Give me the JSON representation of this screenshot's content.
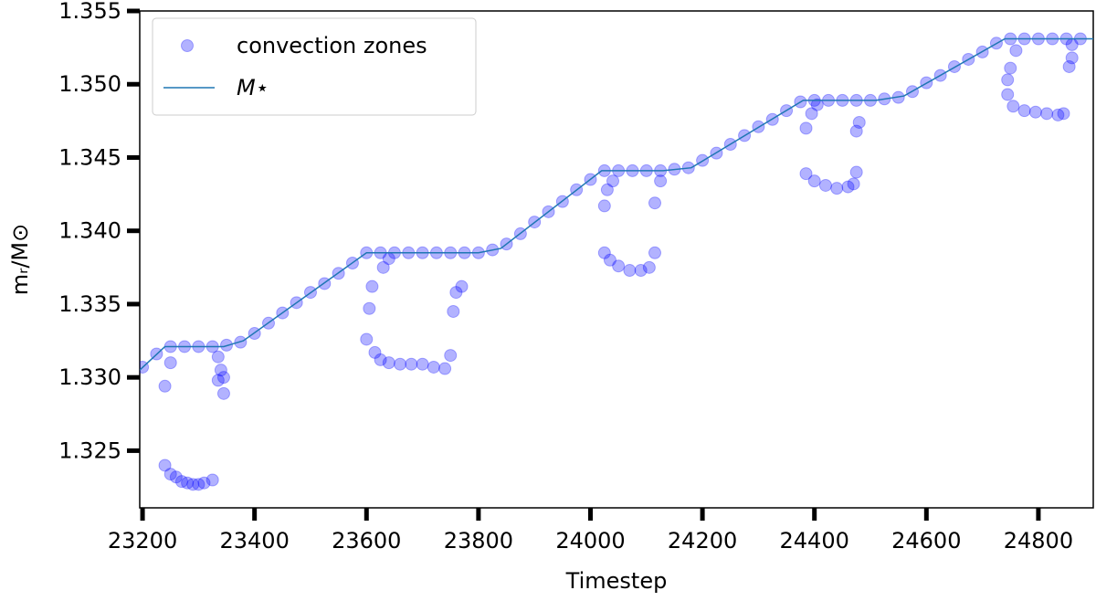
{
  "chart_data": {
    "type": "scatter",
    "xlabel": "Timestep",
    "ylabel": "mᵣ/M⊙",
    "xlim": [
      23195,
      24898
    ],
    "ylim": [
      1.3211,
      1.355
    ],
    "xticks": [
      23200,
      23400,
      23600,
      23800,
      24000,
      24200,
      24400,
      24600,
      24800
    ],
    "yticks": [
      {
        "value": 1.325,
        "label": "1.325"
      },
      {
        "value": 1.33,
        "label": "1.330"
      },
      {
        "value": 1.335,
        "label": "1.335"
      },
      {
        "value": 1.34,
        "label": "1.340"
      },
      {
        "value": 1.345,
        "label": "1.345"
      },
      {
        "value": 1.35,
        "label": "1.350"
      },
      {
        "value": 1.355,
        "label": "1.355"
      }
    ],
    "legend": "upper left",
    "series": [
      {
        "name": "convection zones",
        "type": "scatter",
        "color": "#0000ff",
        "alpha": 0.3,
        "x": [
          23200,
          23225,
          23250,
          23275,
          23300,
          23325,
          23350,
          23375,
          23400,
          23425,
          23450,
          23475,
          23500,
          23525,
          23550,
          23575,
          23600,
          23625,
          23650,
          23675,
          23700,
          23725,
          23750,
          23775,
          23800,
          23825,
          23850,
          23875,
          23900,
          23925,
          23950,
          23975,
          24000,
          24025,
          24050,
          24075,
          24100,
          24125,
          24150,
          24175,
          24200,
          24225,
          24250,
          24275,
          24300,
          24325,
          24350,
          24375,
          24400,
          24425,
          24450,
          24475,
          24500,
          24525,
          24550,
          24575,
          24600,
          24625,
          24650,
          24675,
          24700,
          24725,
          24750,
          24775,
          24800,
          24825,
          24850,
          24875,
          23240,
          23250,
          23240,
          23250,
          23260,
          23270,
          23280,
          23290,
          23300,
          23310,
          23325,
          23335,
          23340,
          23345,
          23345,
          23335,
          23600,
          23605,
          23610,
          23615,
          23625,
          23640,
          23660,
          23680,
          23700,
          23720,
          23740,
          23750,
          23755,
          23760,
          23770,
          23630,
          23640,
          24025,
          24030,
          24040,
          24025,
          24035,
          24050,
          24070,
          24090,
          24105,
          24115,
          24115,
          24125,
          24385,
          24395,
          24405,
          24385,
          24400,
          24420,
          24440,
          24460,
          24470,
          24475,
          24475,
          24480,
          24745,
          24750,
          24760,
          24745,
          24755,
          24775,
          24795,
          24815,
          24835,
          24845,
          24855,
          24860,
          24860
        ],
        "values": [
          1.3307,
          1.3316,
          1.3321,
          1.3321,
          1.3321,
          1.3321,
          1.3322,
          1.3324,
          1.333,
          1.3337,
          1.3344,
          1.3351,
          1.3358,
          1.3364,
          1.3371,
          1.3378,
          1.3385,
          1.3385,
          1.3385,
          1.3385,
          1.3385,
          1.3385,
          1.3385,
          1.3385,
          1.3385,
          1.3387,
          1.3391,
          1.3398,
          1.3406,
          1.3413,
          1.342,
          1.3428,
          1.3435,
          1.3441,
          1.3441,
          1.3441,
          1.3441,
          1.3441,
          1.3442,
          1.3443,
          1.3448,
          1.3453,
          1.3459,
          1.3465,
          1.3471,
          1.3476,
          1.3482,
          1.3488,
          1.3489,
          1.3489,
          1.3489,
          1.3489,
          1.3489,
          1.349,
          1.3491,
          1.3495,
          1.3501,
          1.3506,
          1.3512,
          1.3517,
          1.3522,
          1.3528,
          1.3531,
          1.3531,
          1.3531,
          1.3531,
          1.3531,
          1.3531,
          1.3294,
          1.331,
          1.324,
          1.3234,
          1.3232,
          1.3229,
          1.3228,
          1.3227,
          1.3227,
          1.3228,
          1.323,
          1.3314,
          1.3305,
          1.33,
          1.3289,
          1.3298,
          1.3326,
          1.3347,
          1.3362,
          1.3317,
          1.3312,
          1.331,
          1.3309,
          1.3309,
          1.3309,
          1.3307,
          1.3306,
          1.3315,
          1.3345,
          1.3358,
          1.3362,
          1.3375,
          1.3381,
          1.3417,
          1.3428,
          1.3434,
          1.3385,
          1.338,
          1.3376,
          1.3373,
          1.3373,
          1.3375,
          1.3385,
          1.3419,
          1.3434,
          1.347,
          1.348,
          1.3486,
          1.3439,
          1.3434,
          1.3431,
          1.3429,
          1.343,
          1.3432,
          1.344,
          1.3468,
          1.3474,
          1.3503,
          1.3511,
          1.3523,
          1.3493,
          1.3485,
          1.3482,
          1.3481,
          1.348,
          1.3479,
          1.348,
          1.3512,
          1.3518,
          1.3527
        ]
      },
      {
        "name": "M⋆",
        "type": "line",
        "color": "#1f77b4",
        "x": [
          23195,
          23240,
          23345,
          23380,
          23600,
          23800,
          23840,
          24020,
          24130,
          24180,
          24380,
          24510,
          24560,
          24740,
          24898
        ],
        "values": [
          1.3305,
          1.3321,
          1.3321,
          1.3325,
          1.3385,
          1.3385,
          1.3388,
          1.3441,
          1.3441,
          1.3443,
          1.3489,
          1.3489,
          1.3492,
          1.3531,
          1.3531
        ]
      }
    ]
  }
}
